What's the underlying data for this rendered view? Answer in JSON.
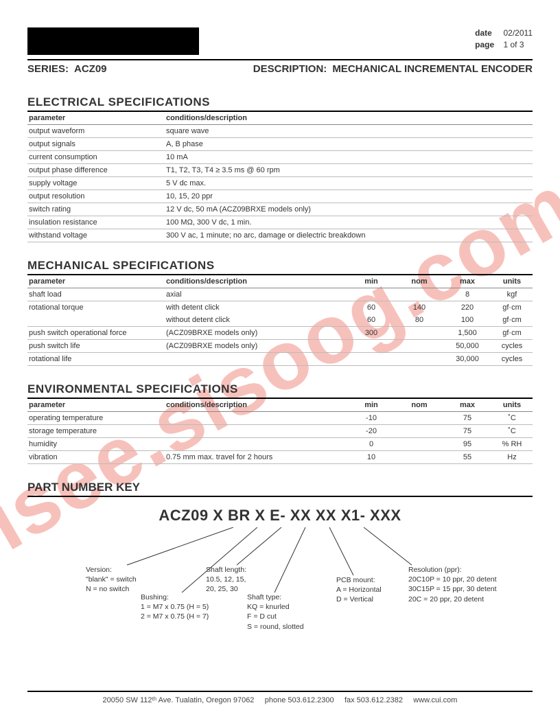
{
  "header": {
    "date_label": "date",
    "date": "02/2011",
    "page_label": "page",
    "page": "1 of 3",
    "series_label": "SERIES:",
    "series": "ACZ09",
    "desc_label": "DESCRIPTION:",
    "desc": "MECHANICAL INCREMENTAL ENCODER"
  },
  "watermark": "isee.sisoog.com",
  "electrical": {
    "title": "ELECTRICAL SPECIFICATIONS",
    "headers": {
      "a": "parameter",
      "b": "conditions/description"
    },
    "rows": [
      {
        "p": "output waveform",
        "c": "square wave"
      },
      {
        "p": "output signals",
        "c": "A, B phase"
      },
      {
        "p": "current consumption",
        "c": "10 mA"
      },
      {
        "p": "output phase difference",
        "c": "T1, T2, T3, T4 ≥ 3.5 ms @ 60 rpm"
      },
      {
        "p": "supply voltage",
        "c": "5 V dc max."
      },
      {
        "p": "output resolution",
        "c": "10, 15, 20 ppr"
      },
      {
        "p": "switch rating",
        "c": "12 V dc, 50 mA (ACZ09BRXE models only)"
      },
      {
        "p": "insulation resistance",
        "c": "100 MΩ, 300 V dc, 1 min."
      },
      {
        "p": "withstand voltage",
        "c": "300 V ac, 1 minute; no arc, damage or dielectric breakdown"
      }
    ]
  },
  "mechanical": {
    "title": "MECHANICAL SPECIFICATIONS",
    "headers": {
      "a": "parameter",
      "b": "conditions/description",
      "min": "min",
      "nom": "nom",
      "max": "max",
      "u": "units"
    },
    "rows": [
      {
        "p": "shaft load",
        "c": "axial",
        "min": "",
        "nom": "",
        "max": "8",
        "u": "kgf"
      },
      {
        "p": "rotational torque",
        "c": "with detent click",
        "min": "60",
        "nom": "140",
        "max": "220",
        "u": "gf·cm"
      },
      {
        "p": "",
        "c": "without detent click",
        "min": "60",
        "nom": "80",
        "max": "100",
        "u": "gf·cm",
        "sub": true
      },
      {
        "p": "push switch operational force",
        "c": "(ACZ09BRXE models only)",
        "min": "300",
        "nom": "",
        "max": "1,500",
        "u": "gf·cm"
      },
      {
        "p": "push switch life",
        "c": "(ACZ09BRXE models only)",
        "min": "",
        "nom": "",
        "max": "50,000",
        "u": "cycles"
      },
      {
        "p": "rotational life",
        "c": "",
        "min": "",
        "nom": "",
        "max": "30,000",
        "u": "cycles"
      }
    ]
  },
  "environmental": {
    "title": "ENVIRONMENTAL SPECIFICATIONS",
    "headers": {
      "a": "parameter",
      "b": "conditions/description",
      "min": "min",
      "nom": "nom",
      "max": "max",
      "u": "units"
    },
    "rows": [
      {
        "p": "operating temperature",
        "c": "",
        "min": "-10",
        "nom": "",
        "max": "75",
        "u": "˚C"
      },
      {
        "p": "storage temperature",
        "c": "",
        "min": "-20",
        "nom": "",
        "max": "75",
        "u": "˚C"
      },
      {
        "p": "humidity",
        "c": "",
        "min": "0",
        "nom": "",
        "max": "95",
        "u": "% RH"
      },
      {
        "p": "vibration",
        "c": "0.75 mm max. travel for 2 hours",
        "min": "10",
        "nom": "",
        "max": "55",
        "u": "Hz"
      }
    ]
  },
  "pnk": {
    "title": "PART NUMBER KEY",
    "code": "ACZ09 X BR X E- XX XX X1- XXX",
    "groups": {
      "version": {
        "title": "Version:",
        "lines": [
          "\"blank\" = switch",
          "N = no switch"
        ]
      },
      "bushing": {
        "title": "Bushing:",
        "lines": [
          "1 = M7 x 0.75 (H = 5)",
          "2 = M7 x 0.75 (H = 7)"
        ]
      },
      "shaftlen": {
        "title": "Shaft length:",
        "lines": [
          "10.5, 12, 15,",
          "20, 25, 30"
        ]
      },
      "shafttype": {
        "title": "Shaft type:",
        "lines": [
          "KQ = knurled",
          "F = D cut",
          "S = round, slotted"
        ]
      },
      "pcb": {
        "title": "PCB mount:",
        "lines": [
          "A = Horizontal",
          "D = Vertical"
        ]
      },
      "resolution": {
        "title": "Resolution (ppr):",
        "lines": [
          "20C10P = 10 ppr, 20 detent",
          "30C15P = 15 ppr, 30 detent",
          "20C = 20 ppr, 20 detent"
        ]
      }
    }
  },
  "footer": {
    "addr": "20050 SW 112ᵗʰ Ave. Tualatin, Oregon 97062",
    "phone": "phone 503.612.2300",
    "fax": "fax 503.612.2382",
    "url": "www.cui.com"
  },
  "style": {
    "watermark_color": "rgba(231,76,60,0.35)",
    "rule_color": "#000"
  }
}
